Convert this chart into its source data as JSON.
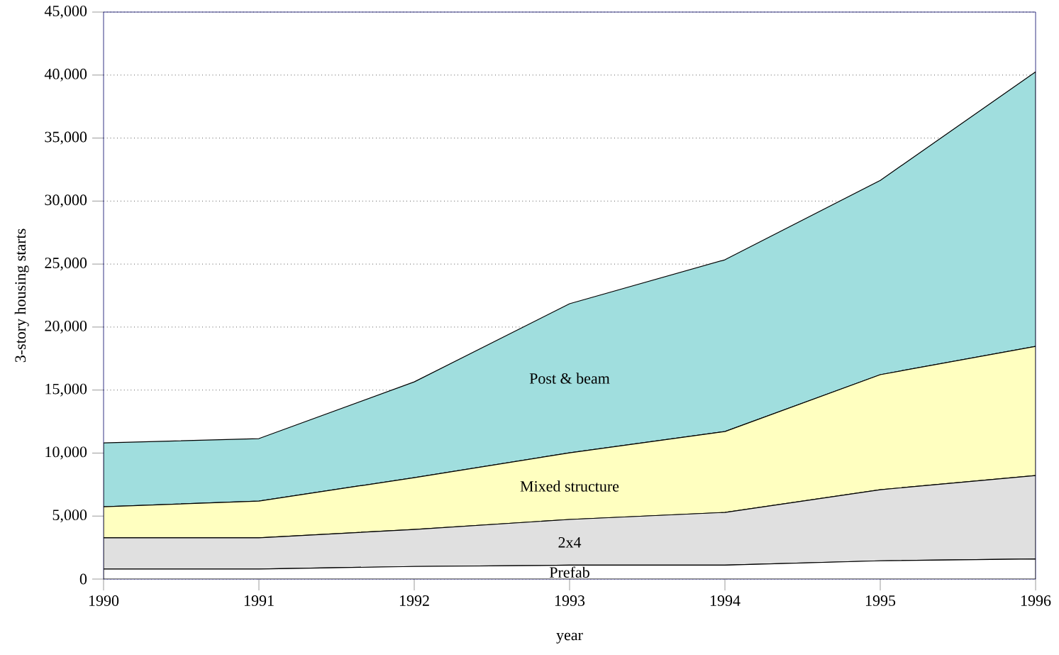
{
  "chart_data": {
    "type": "area",
    "stacked": true,
    "xlabel": "year",
    "ylabel": "3-story housing starts",
    "x": [
      1990,
      1991,
      1992,
      1993,
      1994,
      1995,
      1996
    ],
    "series": [
      {
        "name": "Prefab",
        "color": "#ffffff",
        "values": [
          800,
          800,
          1000,
          1100,
          1100,
          1450,
          1600
        ]
      },
      {
        "name": "2x4",
        "color": "#e0e0e0",
        "values": [
          2470,
          2470,
          2940,
          3630,
          4190,
          5640,
          6620
        ]
      },
      {
        "name": "Mixed structure",
        "color": "#ffffc0",
        "values": [
          2470,
          2920,
          4110,
          5290,
          6420,
          9130,
          10250
        ]
      },
      {
        "name": "Post & beam",
        "color": "#a0dede",
        "values": [
          5070,
          4960,
          7600,
          11830,
          13630,
          15420,
          21790
        ]
      }
    ],
    "xlim": [
      1990,
      1996
    ],
    "xticks": [
      1990,
      1991,
      1992,
      1993,
      1994,
      1995,
      1996
    ],
    "ylim": [
      0,
      45000
    ],
    "yticks": [
      0,
      {
        "value": 5000,
        "label": "5,000"
      },
      {
        "value": 10000,
        "label": "10,000"
      },
      {
        "value": 15000,
        "label": "15,000"
      },
      {
        "value": 20000,
        "label": "20,000"
      },
      {
        "value": 25000,
        "label": "25,000"
      },
      {
        "value": 30000,
        "label": "30,000"
      },
      {
        "value": 35000,
        "label": "35,000"
      },
      {
        "value": 40000,
        "label": "40,000"
      },
      {
        "value": 45000,
        "label": "45,000"
      }
    ],
    "grid": "y"
  }
}
